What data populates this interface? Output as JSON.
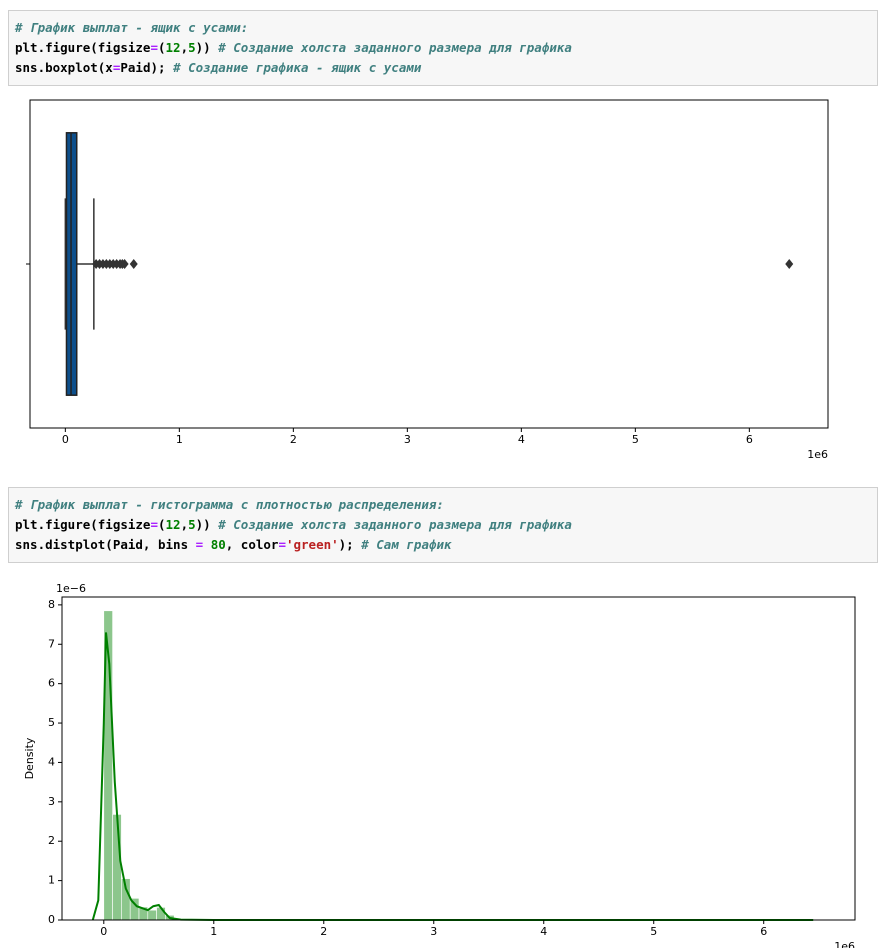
{
  "cells": [
    {
      "lines": [
        [
          {
            "text": "# График выплат - ящик с усами:",
            "color": "#408080",
            "italic": true
          }
        ],
        [
          {
            "text": "plt.figure(figsize",
            "color": "#000000"
          },
          {
            "text": "=",
            "color": "#aa22ff"
          },
          {
            "text": "(",
            "color": "#000000"
          },
          {
            "text": "12",
            "color": "#008000"
          },
          {
            "text": ",",
            "color": "#000000"
          },
          {
            "text": "5",
            "color": "#008000"
          },
          {
            "text": ")) ",
            "color": "#000000"
          },
          {
            "text": "# Создание холста заданного размера для графика",
            "color": "#408080",
            "italic": true
          }
        ],
        [
          {
            "text": "sns.boxplot(x",
            "color": "#000000"
          },
          {
            "text": "=",
            "color": "#aa22ff"
          },
          {
            "text": "Paid); ",
            "color": "#000000"
          },
          {
            "text": "# Создание графика - ящик с усами",
            "color": "#408080",
            "italic": true
          }
        ]
      ]
    },
    {
      "lines": [
        [
          {
            "text": "# График выплат - гистограмма с плотностью распределения:",
            "color": "#408080",
            "italic": true
          }
        ],
        [
          {
            "text": "plt.figure(figsize",
            "color": "#000000"
          },
          {
            "text": "=",
            "color": "#aa22ff"
          },
          {
            "text": "(",
            "color": "#000000"
          },
          {
            "text": "12",
            "color": "#008000"
          },
          {
            "text": ",",
            "color": "#000000"
          },
          {
            "text": "5",
            "color": "#008000"
          },
          {
            "text": ")) ",
            "color": "#000000"
          },
          {
            "text": "# Создание холста заданного размера для графика",
            "color": "#408080",
            "italic": true
          }
        ],
        [
          {
            "text": "sns.distplot(Paid, bins ",
            "color": "#000000"
          },
          {
            "text": "=",
            "color": "#aa22ff"
          },
          {
            "text": " ",
            "color": "#000000"
          },
          {
            "text": "80",
            "color": "#008000"
          },
          {
            "text": ", color",
            "color": "#000000"
          },
          {
            "text": "=",
            "color": "#aa22ff"
          },
          {
            "text": "'green'",
            "color": "#ba2121"
          },
          {
            "text": "); ",
            "color": "#000000"
          },
          {
            "text": "# Сам график",
            "color": "#408080",
            "italic": true
          }
        ]
      ]
    }
  ],
  "chart_data": [
    {
      "type": "box",
      "orientation": "horizontal",
      "stats": {
        "whislo": 0,
        "q1": 0.01,
        "med": 0.05,
        "q3": 0.1,
        "whishi": 0.25
      },
      "outliers": [
        0.27,
        0.3,
        0.33,
        0.36,
        0.39,
        0.42,
        0.45,
        0.48,
        0.5,
        0.52,
        0.6,
        6.35
      ],
      "color": "#0d4f8b",
      "xlim": [
        -0.31,
        6.69
      ],
      "xticks": [
        0,
        1,
        2,
        3,
        4,
        5,
        6
      ],
      "x_offset_label": "1e6"
    },
    {
      "type": "histogram",
      "color": "#008000",
      "bins": [
        0,
        0.08,
        0.16,
        0.24,
        0.32,
        0.4,
        0.48,
        0.56,
        0.64,
        0.72,
        0.8,
        0.88,
        0.96,
        1.04,
        1.12,
        1.2,
        1.28,
        1.36,
        1.44,
        1.52,
        1.6,
        1.68,
        1.76,
        1.84,
        1.92,
        2,
        2.08,
        2.16,
        2.24,
        2.32,
        2.4,
        2.48,
        2.56,
        2.64,
        2.72,
        2.8,
        2.88,
        2.96,
        3.04,
        3.12,
        3.2,
        3.28,
        3.36,
        3.44,
        3.52,
        3.6,
        3.68,
        3.76,
        3.84,
        3.92,
        4,
        4.08,
        4.16,
        4.24,
        4.32,
        4.4,
        4.48,
        4.56,
        4.64,
        4.72,
        4.8,
        4.88,
        4.96,
        5.04,
        5.12,
        5.2,
        5.28,
        5.36,
        5.44,
        5.52,
        5.6,
        5.68,
        5.76,
        5.84,
        5.92,
        6,
        6.08,
        6.16,
        6.24,
        6.32,
        6.4
      ],
      "values": [
        7.85,
        2.68,
        1.05,
        0.55,
        0.33,
        0.25,
        0.32,
        0.12,
        0.02,
        0,
        0,
        0,
        0,
        0,
        0,
        0,
        0,
        0,
        0,
        0,
        0,
        0,
        0,
        0,
        0,
        0,
        0,
        0,
        0,
        0,
        0,
        0,
        0,
        0,
        0,
        0,
        0,
        0,
        0,
        0,
        0,
        0,
        0,
        0,
        0,
        0,
        0,
        0,
        0,
        0,
        0,
        0,
        0,
        0,
        0,
        0,
        0,
        0,
        0,
        0,
        0,
        0,
        0,
        0,
        0,
        0,
        0,
        0,
        0,
        0,
        0,
        0,
        0,
        0,
        0,
        0,
        0,
        0,
        0,
        0.01
      ],
      "kde": {
        "x": [
          -0.1,
          -0.05,
          0,
          0.02,
          0.05,
          0.1,
          0.15,
          0.2,
          0.25,
          0.3,
          0.35,
          0.4,
          0.45,
          0.5,
          0.55,
          0.6,
          0.7,
          1,
          6.35,
          6.45
        ],
        "y": [
          0,
          0.5,
          5,
          7.3,
          6.5,
          3.5,
          1.5,
          0.8,
          0.5,
          0.35,
          0.3,
          0.25,
          0.35,
          0.38,
          0.2,
          0.05,
          0.01,
          0,
          0,
          0
        ]
      },
      "ylabel": "Density",
      "xlim": [
        -0.38,
        6.83
      ],
      "xticks": [
        0,
        1,
        2,
        3,
        4,
        5,
        6
      ],
      "x_offset_label": "1e6",
      "ylim": [
        0,
        8.2
      ],
      "yticks": [
        0,
        1,
        2,
        3,
        4,
        5,
        6,
        7,
        8
      ],
      "y_offset_label": "1e−6"
    }
  ]
}
